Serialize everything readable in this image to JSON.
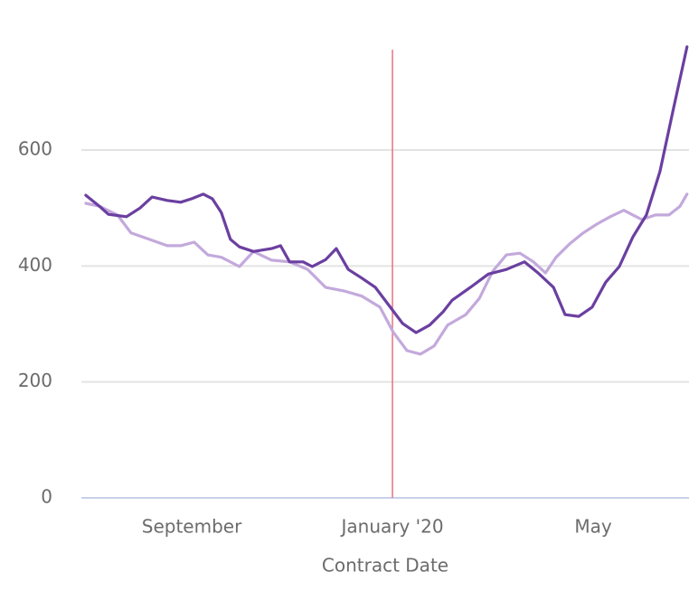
{
  "chart_data": {
    "type": "line",
    "x_label": "Contract Date",
    "xlim": [
      6.9,
      18.9
    ],
    "xticks": [
      {
        "value": 9,
        "label": "September"
      },
      {
        "value": 13,
        "label": "January '20"
      },
      {
        "value": 17,
        "label": "May"
      }
    ],
    "ylim": [
      0,
      780
    ],
    "yticks": [
      0,
      200,
      400,
      600
    ],
    "grid": true,
    "vline": 13,
    "vline_color": "#e57383",
    "series": [
      {
        "color": "#6b3fa0",
        "x": [
          6.89,
          7.16,
          7.34,
          7.7,
          7.97,
          8.21,
          8.51,
          8.78,
          9.0,
          9.23,
          9.41,
          9.59,
          9.77,
          9.95,
          10.23,
          10.59,
          10.77,
          10.95,
          11.22,
          11.4,
          11.67,
          11.88,
          12.12,
          12.39,
          12.66,
          12.93,
          13.2,
          13.47,
          13.74,
          14.01,
          14.19,
          14.55,
          14.91,
          15.27,
          15.63,
          15.9,
          16.21,
          16.44,
          16.71,
          16.98,
          17.25,
          17.52,
          17.79,
          18.06,
          18.33,
          18.6,
          18.87
        ],
        "values": [
          522,
          503,
          489,
          485,
          500,
          519,
          513,
          510,
          516,
          524,
          516,
          492,
          446,
          433,
          425,
          430,
          435,
          407,
          407,
          399,
          411,
          430,
          394,
          379,
          363,
          332,
          301,
          285,
          298,
          321,
          341,
          363,
          386,
          394,
          407,
          388,
          363,
          316,
          313,
          329,
          372,
          399,
          450,
          488,
          563,
          672,
          778
        ]
      },
      {
        "color": "#c3a9dc",
        "x": [
          6.89,
          7.16,
          7.52,
          7.79,
          8.15,
          8.51,
          8.78,
          9.05,
          9.32,
          9.59,
          9.95,
          10.23,
          10.59,
          10.95,
          11.31,
          11.67,
          12.03,
          12.39,
          12.75,
          13.02,
          13.29,
          13.56,
          13.83,
          14.1,
          14.46,
          14.73,
          15.0,
          15.27,
          15.54,
          15.81,
          16.05,
          16.26,
          16.53,
          16.8,
          17.07,
          17.34,
          17.61,
          17.79,
          17.97,
          18.24,
          18.51,
          18.73,
          18.87
        ],
        "values": [
          508,
          503,
          488,
          457,
          446,
          435,
          435,
          441,
          419,
          415,
          399,
          425,
          410,
          407,
          394,
          363,
          357,
          348,
          329,
          285,
          254,
          248,
          262,
          298,
          316,
          344,
          391,
          419,
          422,
          407,
          388,
          415,
          438,
          457,
          472,
          485,
          496,
          488,
          480,
          488,
          488,
          503,
          524
        ]
      }
    ]
  }
}
